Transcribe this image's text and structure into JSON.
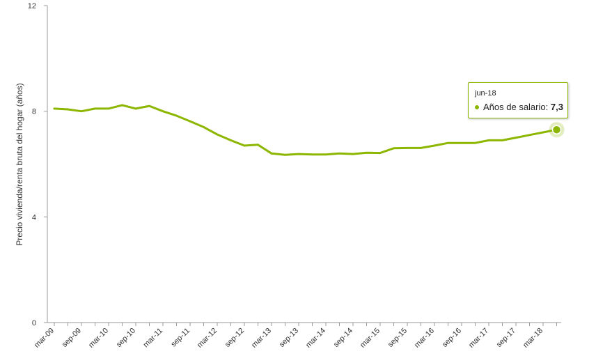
{
  "chart_data": {
    "type": "line",
    "title": "",
    "xlabel": "",
    "ylabel": "Precio vivienda/renta bruta del hogar (años)",
    "ylim": [
      0,
      12
    ],
    "y_ticks": [
      "0",
      "4",
      "8",
      "12"
    ],
    "x_ticks": [
      "mar-09",
      "sep-09",
      "mar-10",
      "sep-10",
      "mar-11",
      "sep-11",
      "mar-12",
      "sep-12",
      "mar-13",
      "sep-13",
      "mar-14",
      "sep-14",
      "mar-15",
      "sep-15",
      "mar-16",
      "sep-16",
      "mar-17",
      "sep-17",
      "mar-18"
    ],
    "x": [
      "mar-09",
      "jun-09",
      "sep-09",
      "dic-09",
      "mar-10",
      "jun-10",
      "sep-10",
      "dic-10",
      "mar-11",
      "jun-11",
      "sep-11",
      "dic-11",
      "mar-12",
      "jun-12",
      "sep-12",
      "dic-12",
      "mar-13",
      "jun-13",
      "sep-13",
      "dic-13",
      "mar-14",
      "jun-14",
      "sep-14",
      "dic-14",
      "mar-15",
      "jun-15",
      "sep-15",
      "dic-15",
      "mar-16",
      "jun-16",
      "sep-16",
      "dic-16",
      "mar-17",
      "jun-17",
      "sep-17",
      "dic-17",
      "mar-18",
      "jun-18"
    ],
    "series": [
      {
        "name": "Años de salario",
        "color": "#8db600",
        "values": [
          8.1,
          8.07,
          8.0,
          8.1,
          8.1,
          8.23,
          8.1,
          8.2,
          8.0,
          7.83,
          7.62,
          7.4,
          7.12,
          6.9,
          6.7,
          6.73,
          6.4,
          6.35,
          6.38,
          6.36,
          6.36,
          6.4,
          6.38,
          6.43,
          6.42,
          6.6,
          6.61,
          6.61,
          6.7,
          6.8,
          6.8,
          6.8,
          6.9,
          6.9,
          7.0,
          7.1,
          7.2,
          7.3
        ]
      }
    ],
    "grid": false,
    "legend": "none"
  },
  "tooltip": {
    "date": "jun-18",
    "series_label": "Años de salario:",
    "value": "7,3"
  }
}
